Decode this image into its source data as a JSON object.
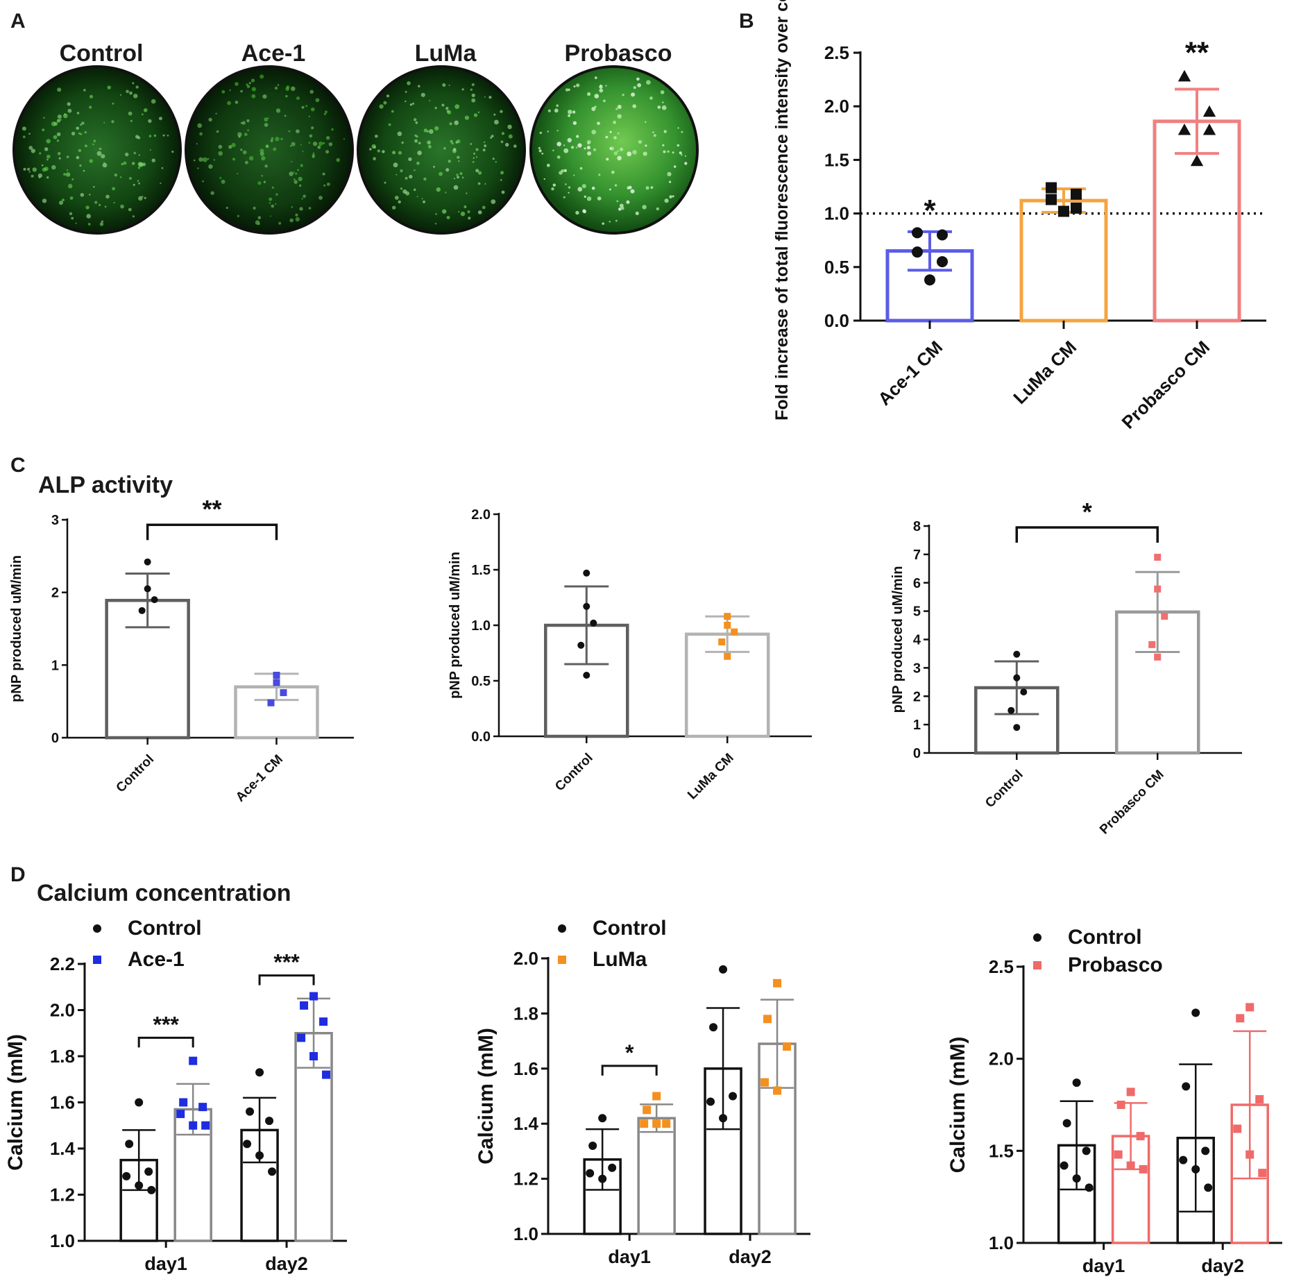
{
  "panel_A": {
    "letter": "A",
    "wells": [
      {
        "label": "Control",
        "brightness": 0.45
      },
      {
        "label": "Ace-1",
        "brightness": 0.28
      },
      {
        "label": "LuMa",
        "brightness": 0.5
      },
      {
        "label": "Probasco",
        "brightness": 0.85
      }
    ]
  },
  "panel_C": {
    "letter": "C",
    "title": "ALP activity"
  },
  "panel_D": {
    "letter": "D",
    "title": "Calcium concentration"
  },
  "chart_data": [
    {
      "id": "B",
      "letter": "B",
      "type": "bar",
      "ylabel": "Fold increase of total fluorescence intensity over control",
      "ylim": [
        0,
        2.5
      ],
      "yticks": [
        "0.0",
        "0.5",
        "1.0",
        "1.5",
        "2.0",
        "2.5"
      ],
      "reference_line": 1.0,
      "categories": [
        "Ace-1 CM",
        "LuMa CM",
        "Probasco  CM"
      ],
      "colors": [
        "#5B5CE6",
        "#F5A442",
        "#F08080"
      ],
      "values": [
        0.65,
        1.12,
        1.86
      ],
      "sd": [
        0.18,
        0.11,
        0.3
      ],
      "points": [
        [
          0.82,
          0.8,
          0.64,
          0.55,
          0.38
        ],
        [
          1.24,
          1.18,
          1.13,
          1.05,
          1.02
        ],
        [
          2.28,
          1.95,
          1.78,
          1.78,
          1.49
        ]
      ],
      "markers": [
        "circle",
        "square",
        "triangle"
      ],
      "significance": [
        "*",
        "",
        "**"
      ]
    },
    {
      "id": "C1",
      "type": "bar",
      "ylabel": "pNP produced uM/min",
      "ylim": [
        0,
        3
      ],
      "yticks": [
        "0",
        "1",
        "2",
        "3"
      ],
      "categories": [
        "Control",
        "Ace-1 CM"
      ],
      "colors": [
        "#5f5f5f",
        "#b3b3b3"
      ],
      "point_colors": [
        "#111111",
        "#4a4ae0"
      ],
      "markers": [
        "circle",
        "square"
      ],
      "values": [
        1.89,
        0.7
      ],
      "sd": [
        0.37,
        0.18
      ],
      "points": [
        [
          2.42,
          2.05,
          1.9,
          1.75
        ],
        [
          0.86,
          0.76,
          0.62,
          0.48
        ]
      ],
      "bracket": {
        "text": "**",
        "y": 2.95
      }
    },
    {
      "id": "C2",
      "type": "bar",
      "ylabel": "pNP produced uM/min",
      "ylim": [
        0,
        2.0
      ],
      "yticks": [
        "0.0",
        "0.5",
        "1.0",
        "1.5",
        "2.0"
      ],
      "categories": [
        "Control",
        "LuMa CM"
      ],
      "colors": [
        "#5f5f5f",
        "#b3b3b3"
      ],
      "point_colors": [
        "#111111",
        "#f39020"
      ],
      "markers": [
        "circle",
        "square"
      ],
      "values": [
        1.0,
        0.92
      ],
      "sd": [
        0.35,
        0.16
      ],
      "points": [
        [
          1.47,
          1.17,
          1.02,
          0.82,
          0.55
        ],
        [
          1.08,
          1.0,
          0.94,
          0.85,
          0.72
        ]
      ],
      "bracket": null
    },
    {
      "id": "C3",
      "type": "bar",
      "ylabel": "pNP produced uM/min",
      "ylim": [
        0,
        8
      ],
      "yticks": [
        "0",
        "1",
        "2",
        "3",
        "4",
        "5",
        "6",
        "7",
        "8"
      ],
      "categories": [
        "Control",
        "Probasco CM"
      ],
      "colors": [
        "#5f5f5f",
        "#9a9a9a"
      ],
      "point_colors": [
        "#111111",
        "#f07070"
      ],
      "markers": [
        "circle",
        "square"
      ],
      "values": [
        2.3,
        4.97
      ],
      "sd": [
        0.93,
        1.41
      ],
      "points": [
        [
          3.48,
          2.65,
          2.15,
          1.5,
          0.9
        ],
        [
          6.9,
          5.78,
          4.82,
          3.82,
          3.38
        ]
      ],
      "bracket": {
        "text": "*",
        "y": 8.0
      }
    },
    {
      "id": "D1",
      "type": "bar",
      "ylabel": "Calcium (mM)",
      "ylim": [
        1.0,
        2.2
      ],
      "yticks": [
        "1.0",
        "1.2",
        "1.4",
        "1.6",
        "1.8",
        "2.0",
        "2.2"
      ],
      "categories": [
        "day1",
        "day2"
      ],
      "series": [
        {
          "name": "Control",
          "color": "#111111",
          "bar_color": "#111111",
          "marker": "circle",
          "values": [
            1.35,
            1.48
          ],
          "sd": [
            0.13,
            0.14
          ],
          "points": [
            [
              1.6,
              1.42,
              1.3,
              1.28,
              1.24,
              1.22
            ],
            [
              1.73,
              1.56,
              1.52,
              1.42,
              1.37,
              1.3
            ]
          ]
        },
        {
          "name": "Ace-1",
          "color": "#1f2ce0",
          "bar_color": "#888888",
          "marker": "square",
          "values": [
            1.57,
            1.9
          ],
          "sd": [
            0.11,
            0.15
          ],
          "points": [
            [
              1.78,
              1.6,
              1.58,
              1.55,
              1.5,
              1.5
            ],
            [
              2.06,
              2.02,
              1.95,
              1.88,
              1.8,
              1.72
            ]
          ]
        }
      ],
      "brackets": [
        {
          "text": "***",
          "y": 1.88
        },
        {
          "text": "***",
          "y": 2.15
        }
      ]
    },
    {
      "id": "D2",
      "type": "bar",
      "ylabel": "Calcium (mM)",
      "ylim": [
        1.0,
        2.0
      ],
      "yticks": [
        "1.0",
        "1.2",
        "1.4",
        "1.6",
        "1.8",
        "2.0"
      ],
      "categories": [
        "day1",
        "day2"
      ],
      "series": [
        {
          "name": "Control",
          "color": "#111111",
          "bar_color": "#111111",
          "marker": "circle",
          "values": [
            1.27,
            1.6
          ],
          "sd": [
            0.11,
            0.22
          ],
          "points": [
            [
              1.42,
              1.32,
              1.24,
              1.22,
              1.2
            ],
            [
              1.96,
              1.75,
              1.5,
              1.48,
              1.42
            ]
          ]
        },
        {
          "name": "LuMa",
          "color": "#f39020",
          "bar_color": "#888888",
          "marker": "square",
          "values": [
            1.42,
            1.69
          ],
          "sd": [
            0.05,
            0.16
          ],
          "points": [
            [
              1.5,
              1.45,
              1.4,
              1.4,
              1.4
            ],
            [
              1.91,
              1.78,
              1.68,
              1.55,
              1.52
            ]
          ]
        }
      ],
      "brackets": [
        {
          "text": "*",
          "y": 1.61
        }
      ]
    },
    {
      "id": "D3",
      "type": "bar",
      "ylabel": "Calcium (mM)",
      "ylim": [
        1.0,
        2.5
      ],
      "yticks": [
        "1.0",
        "1.5",
        "2.0",
        "2.5"
      ],
      "categories": [
        "day1",
        "day2"
      ],
      "series": [
        {
          "name": "Control",
          "color": "#111111",
          "bar_color": "#111111",
          "marker": "circle",
          "values": [
            1.53,
            1.57
          ],
          "sd": [
            0.24,
            0.4
          ],
          "points": [
            [
              1.87,
              1.65,
              1.5,
              1.42,
              1.35,
              1.3
            ],
            [
              2.25,
              1.85,
              1.5,
              1.45,
              1.4,
              1.3
            ]
          ]
        },
        {
          "name": "Probasco",
          "color": "#f06a6a",
          "bar_color": "#f06a6a",
          "marker": "square",
          "values": [
            1.58,
            1.75
          ],
          "sd": [
            0.18,
            0.4
          ],
          "points": [
            [
              1.82,
              1.75,
              1.58,
              1.48,
              1.42,
              1.4
            ],
            [
              2.28,
              2.22,
              1.78,
              1.62,
              1.48,
              1.38
            ]
          ]
        }
      ],
      "brackets": []
    }
  ]
}
